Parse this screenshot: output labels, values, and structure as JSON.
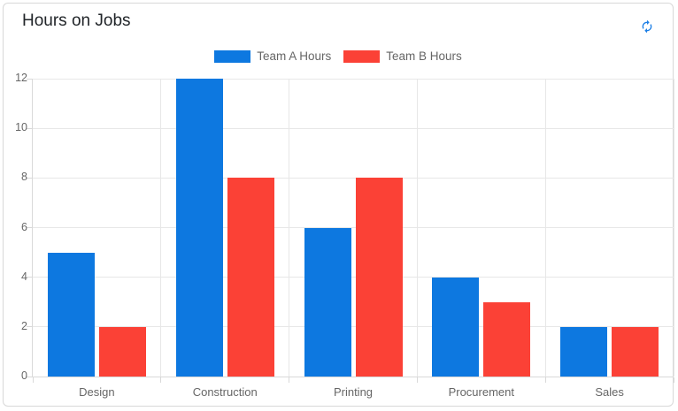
{
  "card": {
    "title": "Hours on Jobs",
    "colors": {
      "team_a_blue": "#0d78e0",
      "team_b_red": "#fb4136",
      "icon_blue": "#1a7ee6",
      "border": "#d8d8d8",
      "grid": "#e7e7e7",
      "axis": "#d9d9d9",
      "muted_text": "#666666",
      "title_text": "#212529"
    }
  },
  "toolbar": {
    "refresh_icon": "refresh-icon"
  },
  "chart_data": {
    "type": "bar",
    "title": "Hours on Jobs",
    "categories": [
      "Design",
      "Construction",
      "Printing",
      "Procurement",
      "Sales"
    ],
    "series": [
      {
        "name": "Team A Hours",
        "color": "#0d78e0",
        "values": [
          5,
          12,
          6,
          4,
          2
        ]
      },
      {
        "name": "Team B Hours",
        "color": "#fb4136",
        "values": [
          2,
          8,
          8,
          3,
          2
        ]
      }
    ],
    "xlabel": "",
    "ylabel": "",
    "ylim": [
      0,
      12
    ],
    "ytick_step": 2,
    "yticks": [
      0,
      2,
      4,
      6,
      8,
      10,
      12
    ],
    "grid": true,
    "legend_position": "top"
  }
}
